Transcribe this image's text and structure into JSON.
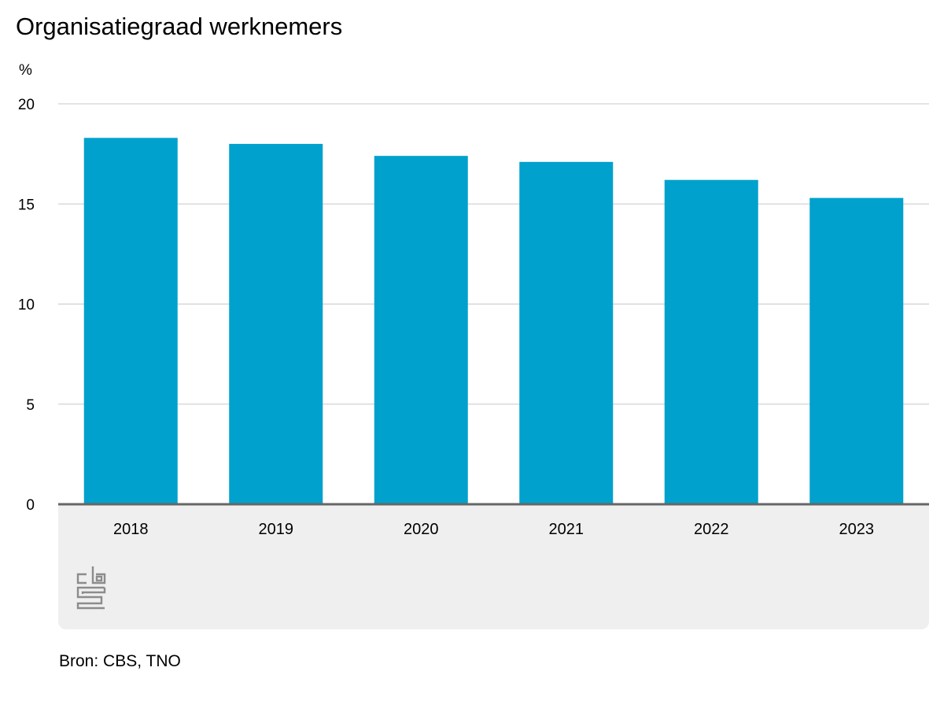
{
  "title": "Organisatiegraad werknemers",
  "source": "Bron: CBS, TNO",
  "logo_text": "cbs",
  "colors": {
    "bar": "#00a1cd",
    "grid": "#c8c8c8",
    "baseline": "#666666",
    "footer_panel": "#efefef",
    "logo": "#8c8c8c"
  },
  "chart_data": {
    "type": "bar",
    "title": "Organisatiegraad werknemers",
    "ylabel": "%",
    "xlabel": "",
    "categories": [
      "2018",
      "2019",
      "2020",
      "2021",
      "2022",
      "2023"
    ],
    "values": [
      18.3,
      18.0,
      17.4,
      17.1,
      16.2,
      15.3
    ],
    "ylim": [
      0,
      20
    ],
    "yticks": [
      "0",
      "5",
      "10",
      "15",
      "20"
    ],
    "grid": true,
    "legend": "none"
  }
}
